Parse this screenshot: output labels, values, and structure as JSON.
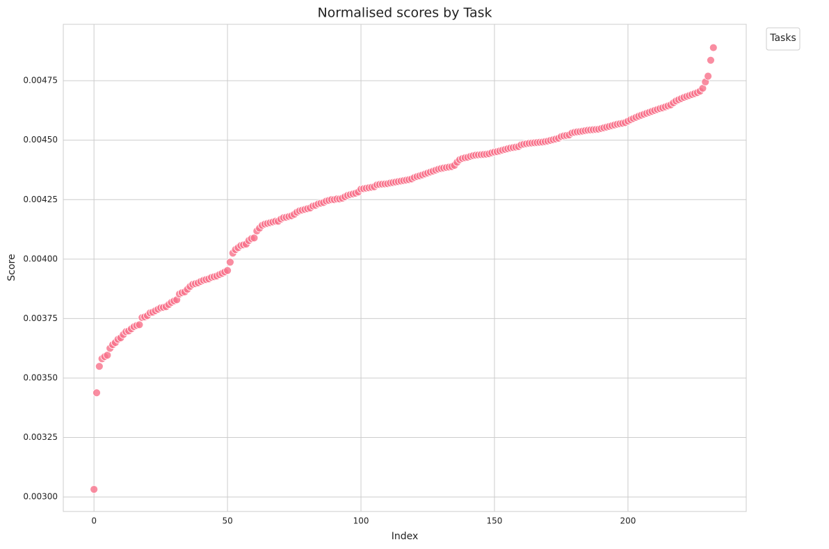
{
  "chart_data": {
    "type": "scatter",
    "title": "Normalised scores by Task",
    "x_label": "Index",
    "y_label": "Score",
    "legend_title": "Tasks",
    "legend_position": "outside-upper-right",
    "grid": true,
    "color": "#f77189",
    "xlim": [
      -11.5,
      244.3
    ],
    "xticks": [
      0,
      50,
      100,
      150,
      200
    ],
    "ylim": [
      0.002939,
      0.004987
    ],
    "yticks": [
      {
        "value": 0.003,
        "label": "0.00300"
      },
      {
        "value": 0.00325,
        "label": "0.00325"
      },
      {
        "value": 0.0035,
        "label": "0.00350"
      },
      {
        "value": 0.00375,
        "label": "0.00375"
      },
      {
        "value": 0.004,
        "label": "0.00400"
      },
      {
        "value": 0.00425,
        "label": "0.00425"
      },
      {
        "value": 0.0045,
        "label": "0.00450"
      },
      {
        "value": 0.00475,
        "label": "0.00475"
      }
    ],
    "x": [
      0,
      1,
      2,
      3,
      4,
      5,
      6,
      7,
      8,
      9,
      10,
      11,
      12,
      13,
      14,
      15,
      16,
      17,
      18,
      19,
      20,
      21,
      22,
      23,
      24,
      25,
      26,
      27,
      28,
      29,
      30,
      31,
      32,
      33,
      34,
      35,
      36,
      37,
      38,
      39,
      40,
      41,
      42,
      43,
      44,
      45,
      46,
      47,
      48,
      49,
      50,
      51,
      52,
      53,
      54,
      55,
      56,
      57,
      58,
      59,
      60,
      61,
      62,
      63,
      64,
      65,
      66,
      67,
      68,
      69,
      70,
      71,
      72,
      73,
      74,
      75,
      76,
      77,
      78,
      79,
      80,
      81,
      82,
      83,
      84,
      85,
      86,
      87,
      88,
      89,
      90,
      91,
      92,
      93,
      94,
      95,
      96,
      97,
      98,
      99,
      100,
      101,
      102,
      103,
      104,
      105,
      106,
      107,
      108,
      109,
      110,
      111,
      112,
      113,
      114,
      115,
      116,
      117,
      118,
      119,
      120,
      121,
      122,
      123,
      124,
      125,
      126,
      127,
      128,
      129,
      130,
      131,
      132,
      133,
      134,
      135,
      136,
      137,
      138,
      139,
      140,
      141,
      142,
      143,
      144,
      145,
      146,
      147,
      148,
      149,
      150,
      151,
      152,
      153,
      154,
      155,
      156,
      157,
      158,
      159,
      160,
      161,
      162,
      163,
      164,
      165,
      166,
      167,
      168,
      169,
      170,
      171,
      172,
      173,
      174,
      175,
      176,
      177,
      178,
      179,
      180,
      181,
      182,
      183,
      184,
      185,
      186,
      187,
      188,
      189,
      190,
      191,
      192,
      193,
      194,
      195,
      196,
      197,
      198,
      199,
      200,
      201,
      202,
      203,
      204,
      205,
      206,
      207,
      208,
      209,
      210,
      211,
      212,
      213,
      214,
      215,
      216,
      217,
      218,
      219,
      220,
      221,
      222,
      223,
      224,
      225,
      226,
      227,
      228,
      229,
      230,
      231,
      232
    ],
    "values": [
      0.003032,
      0.003438,
      0.003549,
      0.003581,
      0.00359,
      0.003596,
      0.003625,
      0.00364,
      0.003649,
      0.003663,
      0.003669,
      0.003683,
      0.003695,
      0.003698,
      0.003707,
      0.003716,
      0.003721,
      0.003724,
      0.003754,
      0.003757,
      0.003762,
      0.003774,
      0.003777,
      0.003783,
      0.003789,
      0.003795,
      0.003797,
      0.0038,
      0.003809,
      0.003818,
      0.003824,
      0.003829,
      0.003853,
      0.003859,
      0.003862,
      0.003873,
      0.003885,
      0.003894,
      0.003897,
      0.0039,
      0.003906,
      0.003911,
      0.003914,
      0.003917,
      0.003923,
      0.003926,
      0.003929,
      0.003935,
      0.00394,
      0.003946,
      0.003952,
      0.003987,
      0.004025,
      0.00404,
      0.004048,
      0.004057,
      0.00406,
      0.004063,
      0.004078,
      0.004086,
      0.004089,
      0.004118,
      0.00413,
      0.004142,
      0.004147,
      0.00415,
      0.004153,
      0.004156,
      0.004159,
      0.004159,
      0.004168,
      0.004174,
      0.004176,
      0.004179,
      0.004182,
      0.004188,
      0.004197,
      0.004203,
      0.004206,
      0.004209,
      0.004212,
      0.004215,
      0.004223,
      0.004226,
      0.004232,
      0.004235,
      0.004238,
      0.004244,
      0.004247,
      0.00425,
      0.00425,
      0.004253,
      0.004253,
      0.004256,
      0.004262,
      0.004268,
      0.004271,
      0.004274,
      0.004277,
      0.004282,
      0.004294,
      0.004296,
      0.004298,
      0.0043,
      0.004302,
      0.004304,
      0.004312,
      0.004314,
      0.004315,
      0.004316,
      0.004317,
      0.00432,
      0.004322,
      0.004324,
      0.004326,
      0.004328,
      0.00433,
      0.004332,
      0.004334,
      0.004337,
      0.004343,
      0.004347,
      0.00435,
      0.004354,
      0.004358,
      0.004362,
      0.004366,
      0.00437,
      0.004374,
      0.004378,
      0.004381,
      0.004383,
      0.004385,
      0.004387,
      0.004389,
      0.004394,
      0.004407,
      0.004418,
      0.004423,
      0.004426,
      0.004428,
      0.004432,
      0.004435,
      0.004437,
      0.004438,
      0.004439,
      0.00444,
      0.004441,
      0.004443,
      0.004447,
      0.00445,
      0.004452,
      0.004455,
      0.004458,
      0.004461,
      0.004464,
      0.004467,
      0.004469,
      0.004471,
      0.004473,
      0.00448,
      0.004483,
      0.004485,
      0.004487,
      0.004488,
      0.004489,
      0.00449,
      0.004491,
      0.004492,
      0.004494,
      0.004496,
      0.004499,
      0.004502,
      0.004505,
      0.004508,
      0.004515,
      0.004518,
      0.00452,
      0.004522,
      0.00453,
      0.004533,
      0.004535,
      0.004536,
      0.004538,
      0.00454,
      0.004542,
      0.004543,
      0.004544,
      0.004545,
      0.004546,
      0.004549,
      0.004552,
      0.004555,
      0.004558,
      0.004561,
      0.004564,
      0.004567,
      0.004569,
      0.004571,
      0.004574,
      0.00458,
      0.004586,
      0.004591,
      0.004596,
      0.004601,
      0.004605,
      0.004609,
      0.004613,
      0.004617,
      0.004621,
      0.004625,
      0.004629,
      0.004633,
      0.004636,
      0.00464,
      0.004644,
      0.004648,
      0.004657,
      0.004665,
      0.00467,
      0.004675,
      0.00468,
      0.004684,
      0.004688,
      0.004692,
      0.004696,
      0.0047,
      0.004706,
      0.004718,
      0.004745,
      0.004769,
      0.004836,
      0.004889
    ]
  }
}
